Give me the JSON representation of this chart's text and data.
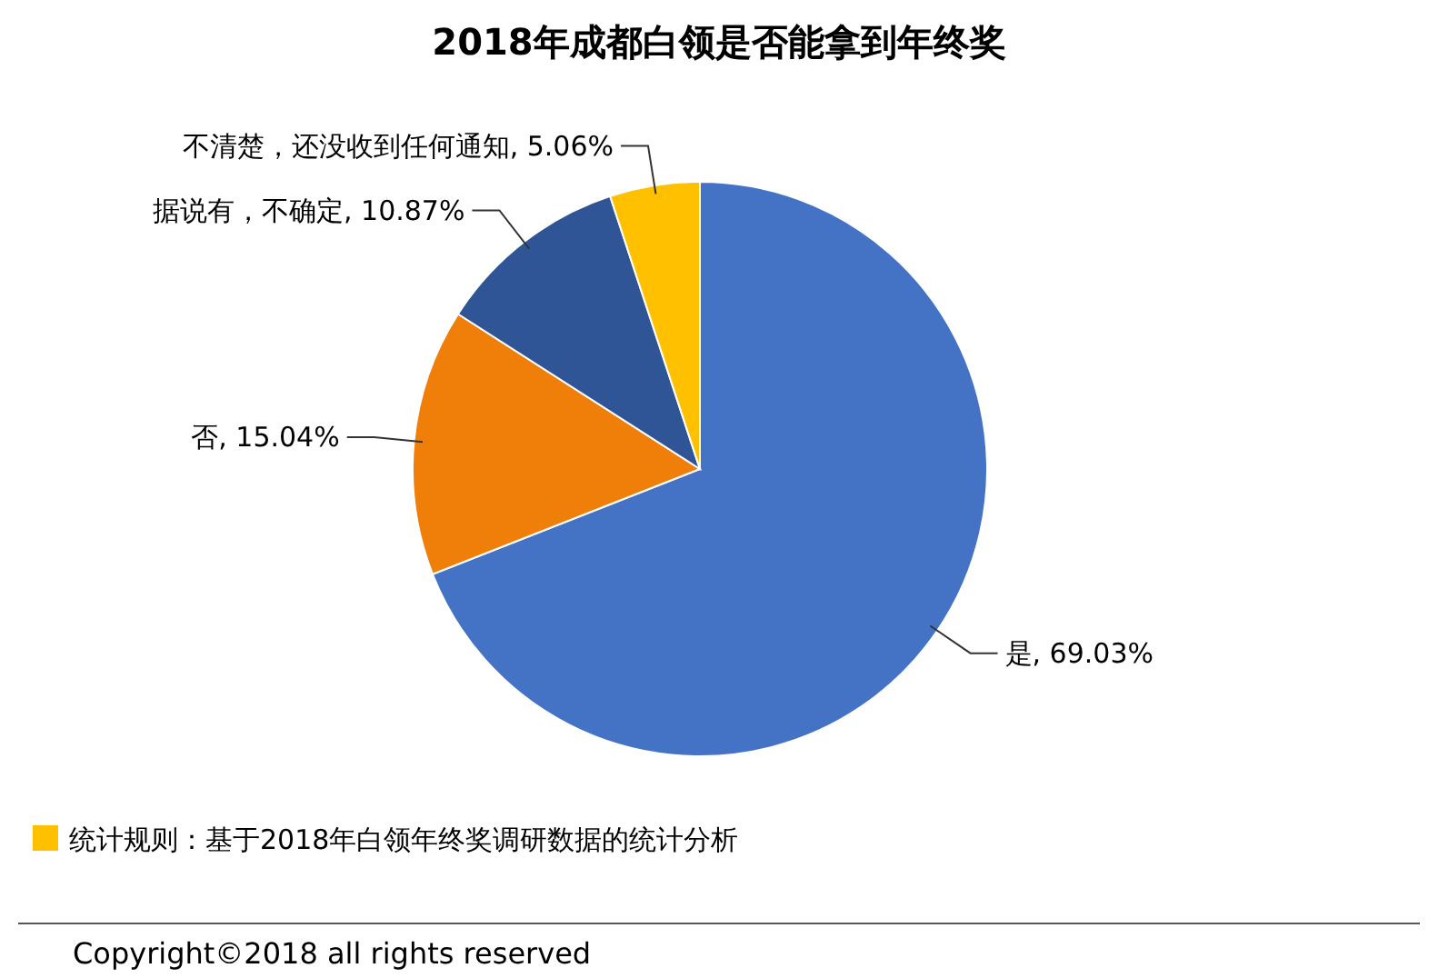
{
  "chart_data": {
    "type": "pie",
    "title": "2018年成都白领是否能拿到年终奖",
    "categories": [
      "是",
      "否",
      "据说有，不确定",
      "不清楚，还没收到任何通知"
    ],
    "values": [
      69.03,
      15.04,
      10.87,
      5.06
    ],
    "colors": [
      "#4472c4",
      "#f07f09",
      "#2f5597",
      "#ffc000"
    ],
    "value_labels": [
      ", 69.03%",
      ", 15.04%",
      ", 10.87%",
      ", 5.06%"
    ],
    "annotations": [
      "统计规则：基于2018年白领年终奖调研数据的统计分析",
      "Copyright©2018 all rights reserved"
    ]
  }
}
